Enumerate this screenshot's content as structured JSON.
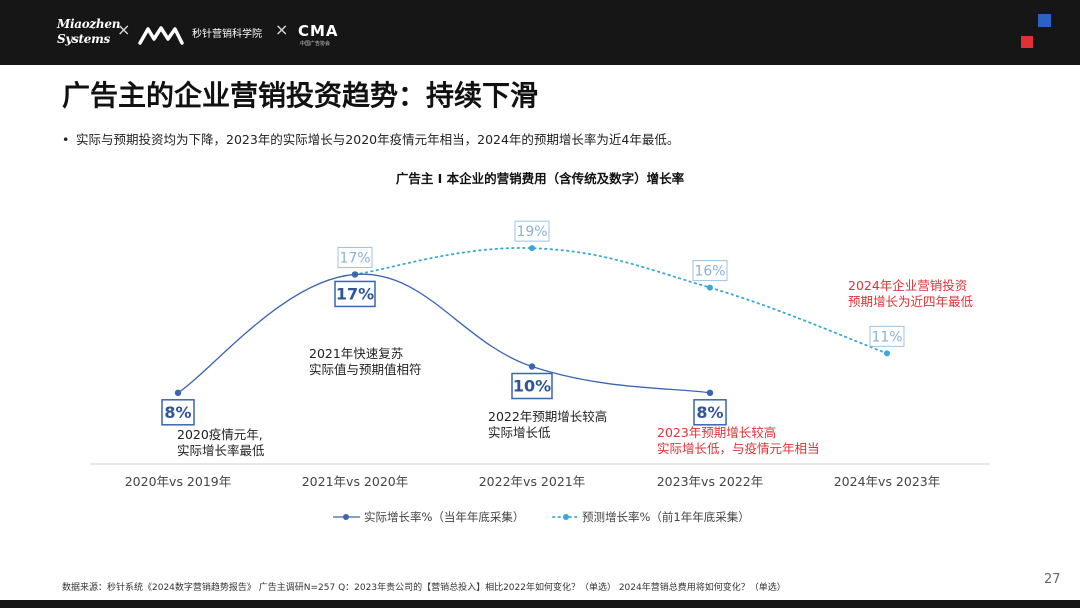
{
  "header": {
    "brand1_line1": "Miaozhen",
    "brand1_line2": "Systems",
    "separator": "×",
    "brand2": "秒针营销科学院",
    "brand3": "CMA",
    "brand3_sub": "中国广告协会"
  },
  "title": "广告主的企业营销投资趋势：持续下滑",
  "bullet": "实际与预期投资均为下降，2023年的实际增长与2020年疫情元年相当，2024年的预期增长率为近4年最低。",
  "bullet_marker": "•",
  "colors": {
    "actual": "#3a65b0",
    "forecast": "#3ba6d8",
    "red": "#e03236",
    "brand_blue": "#2a62c8"
  },
  "chart_data": {
    "type": "line",
    "title": "广告主 I 本企业的营销费用（含传统及数字）增长率",
    "categories": [
      "2020年vs 2019年",
      "2021年vs 2020年",
      "2022年vs 2021年",
      "2023年vs 2022年",
      "2024年vs 2023年"
    ],
    "series": [
      {
        "name": "实际增长率%（当年年底采集）",
        "values": [
          8,
          17,
          10,
          8,
          null
        ],
        "labels": [
          "8%",
          "17%",
          "10%",
          "8%",
          ""
        ]
      },
      {
        "name": "预测增长率%（前1年年底采集）",
        "values": [
          null,
          17,
          19,
          16,
          11
        ],
        "labels": [
          "",
          "17%",
          "19%",
          "16%",
          "11%"
        ]
      }
    ],
    "ylim": [
      0,
      25
    ],
    "legend_position": "bottom",
    "grid": false
  },
  "annotations": {
    "a2020": [
      "2020疫情元年,",
      "实际增长率最低"
    ],
    "a2021": [
      "2021年快速复苏",
      "实际值与预期值相符"
    ],
    "a2022": [
      "2022年预期增长较高",
      "实际增长低"
    ],
    "a2023": [
      "2023年预期增长较高",
      "实际增长低，与疫情元年相当"
    ],
    "a2024": [
      "2024年企业营销投资",
      "预期增长为近四年最低"
    ]
  },
  "footer": "数据来源：秒针系统《2024数字营销趋势报告》 广告主调研N=257    Q：2023年贵公司的【营销总投入】相比2022年如何变化？（单选）     2024年营销总费用将如何变化？（单选）",
  "page_number": "27"
}
